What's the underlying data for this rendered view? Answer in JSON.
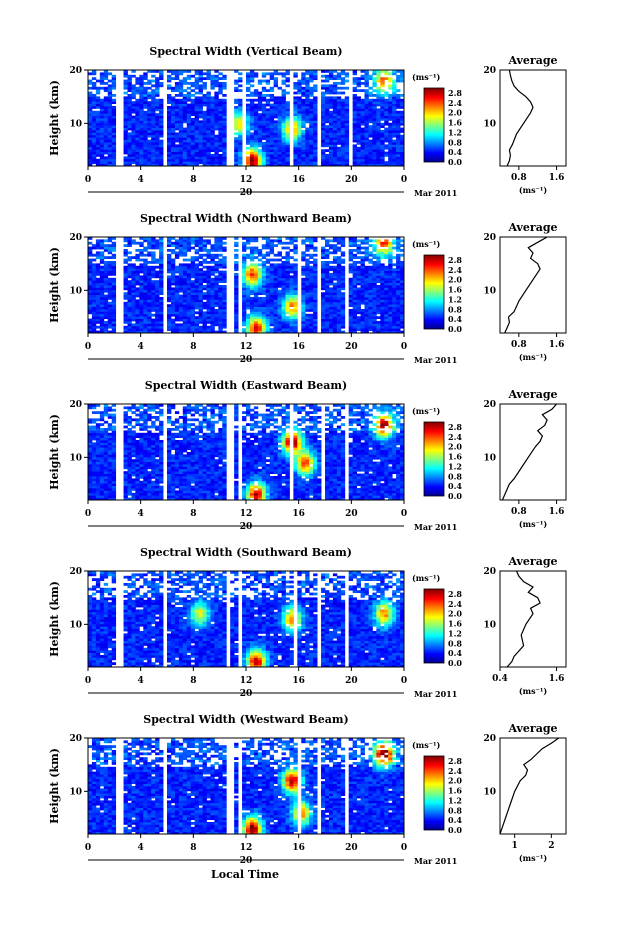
{
  "figure": {
    "date_label": "Mar 2011",
    "day_label": "20",
    "bottom_xlabel": "Local Time",
    "ylabel": "Height (km)",
    "colorbar_unit": "(ms⁻¹)",
    "colorbar_ticks": [
      "0.0",
      "0.4",
      "0.8",
      "1.2",
      "1.6",
      "2.0",
      "2.4",
      "2.8"
    ],
    "x_ticks": [
      "0",
      "4",
      "8",
      "12",
      "16",
      "20",
      "0"
    ],
    "y_ticks": [
      "20",
      "10"
    ],
    "avg_title": "Average",
    "avg_xlabel": "(ms⁻¹)"
  },
  "chart_data": [
    {
      "type": "heatmap",
      "title": "Spectral Width (Vertical Beam)",
      "xlabel": "Local Time",
      "ylabel": "Height (km)",
      "xlim": [
        0,
        24
      ],
      "ylim": [
        2,
        20
      ],
      "clim": [
        0,
        3.0
      ],
      "hotspots": [
        [
          12.5,
          3,
          2.6
        ],
        [
          15.5,
          9,
          1.8
        ],
        [
          11.5,
          10,
          1.4
        ],
        [
          22.5,
          18,
          1.8
        ]
      ],
      "gaps": [
        [
          2.2,
          2.8
        ],
        [
          5.8,
          6.1
        ],
        [
          10.6,
          11.1
        ],
        [
          11.6,
          11.9
        ],
        [
          15.4,
          15.7
        ],
        [
          17.4,
          17.7
        ],
        [
          19.8,
          20.1
        ]
      ],
      "average": {
        "x": [
          0.55,
          0.6,
          0.62,
          0.6,
          0.66,
          0.75,
          0.9,
          1.05,
          1.1,
          1.05,
          0.95,
          0.8,
          0.7,
          0.65,
          0.62,
          0.6
        ],
        "y": [
          2,
          3,
          4,
          5,
          6,
          8,
          10,
          12,
          13,
          14,
          15,
          16,
          17,
          18,
          19,
          20
        ],
        "xlim": [
          0.4,
          1.8
        ],
        "xticks": [
          "0.8",
          "1.6"
        ]
      }
    },
    {
      "type": "heatmap",
      "title": "Spectral Width (Northward Beam)",
      "xlabel": "Local Time",
      "ylabel": "Height (km)",
      "xlim": [
        0,
        24
      ],
      "ylim": [
        2,
        20
      ],
      "clim": [
        0,
        3.0
      ],
      "hotspots": [
        [
          12.8,
          3,
          2.2
        ],
        [
          12.5,
          13,
          2.0
        ],
        [
          15.5,
          7,
          1.8
        ],
        [
          22.5,
          19,
          2.0
        ]
      ],
      "gaps": [
        [
          2.0,
          2.6
        ],
        [
          5.8,
          6.1
        ],
        [
          10.6,
          11.1
        ],
        [
          11.5,
          11.8
        ],
        [
          15.8,
          16.1
        ],
        [
          17.5,
          17.8
        ],
        [
          19.6,
          19.9
        ]
      ],
      "average": {
        "x": [
          0.5,
          0.55,
          0.6,
          0.58,
          0.7,
          0.8,
          0.95,
          1.1,
          1.25,
          1.2,
          1.05,
          1.1,
          1.0,
          1.2,
          1.3,
          1.4
        ],
        "y": [
          2,
          3,
          4,
          5,
          6,
          8,
          10,
          12,
          14,
          15,
          16,
          17,
          18,
          19,
          19.5,
          20
        ],
        "xlim": [
          0.4,
          1.8
        ],
        "xticks": [
          "0.8",
          "1.6"
        ]
      }
    },
    {
      "type": "heatmap",
      "title": "Spectral Width (Eastward Beam)",
      "xlabel": "Local Time",
      "ylabel": "Height (km)",
      "xlim": [
        0,
        24
      ],
      "ylim": [
        2,
        20
      ],
      "clim": [
        0,
        3.0
      ],
      "hotspots": [
        [
          12.8,
          3,
          2.4
        ],
        [
          15.5,
          13,
          2.6
        ],
        [
          16.5,
          9,
          2.0
        ],
        [
          22.5,
          16,
          2.4
        ]
      ],
      "gaps": [
        [
          2.0,
          2.6
        ],
        [
          5.8,
          6.1
        ],
        [
          10.6,
          11.1
        ],
        [
          11.5,
          11.8
        ],
        [
          15.2,
          15.5
        ],
        [
          17.6,
          17.9
        ],
        [
          19.6,
          19.9
        ]
      ],
      "average": {
        "x": [
          0.45,
          0.5,
          0.55,
          0.6,
          0.7,
          0.85,
          1.0,
          1.15,
          1.25,
          1.3,
          1.2,
          1.35,
          1.4,
          1.3,
          1.5,
          1.6
        ],
        "y": [
          2,
          3,
          4,
          5,
          6,
          8,
          10,
          12,
          13,
          14,
          15,
          16,
          17,
          18,
          19,
          20
        ],
        "xlim": [
          0.4,
          1.8
        ],
        "xticks": [
          "0.8",
          "1.6"
        ]
      }
    },
    {
      "type": "heatmap",
      "title": "Spectral Width (Southward Beam)",
      "xlabel": "Local Time",
      "ylabel": "Height (km)",
      "xlim": [
        0,
        24
      ],
      "ylim": [
        2,
        20
      ],
      "clim": [
        0,
        3.0
      ],
      "hotspots": [
        [
          12.8,
          3,
          2.4
        ],
        [
          15.5,
          11,
          1.8
        ],
        [
          22.5,
          12,
          1.8
        ],
        [
          8.5,
          12,
          1.4
        ]
      ],
      "gaps": [
        [
          2.0,
          2.6
        ],
        [
          5.8,
          6.1
        ],
        [
          10.4,
          10.8
        ],
        [
          11.5,
          11.8
        ],
        [
          15.6,
          15.9
        ],
        [
          17.4,
          17.7
        ],
        [
          19.6,
          19.9
        ]
      ],
      "average": {
        "x": [
          0.55,
          0.65,
          0.7,
          0.8,
          0.9,
          0.85,
          0.95,
          1.1,
          1.05,
          1.25,
          1.2,
          1.0,
          1.1,
          0.9,
          0.8,
          0.75
        ],
        "y": [
          2,
          3,
          4,
          5,
          6,
          8,
          10,
          12,
          13,
          14,
          15,
          16,
          17,
          18,
          19,
          20
        ],
        "xlim": [
          0.4,
          1.8
        ],
        "xticks": [
          "0.4",
          "1.6"
        ]
      }
    },
    {
      "type": "heatmap",
      "title": "Spectral Width (Westward Beam)",
      "xlabel": "Local Time",
      "ylabel": "Height (km)",
      "xlim": [
        0,
        24
      ],
      "ylim": [
        2,
        20
      ],
      "clim": [
        0,
        3.0
      ],
      "hotspots": [
        [
          12.5,
          3,
          2.6
        ],
        [
          15.5,
          12,
          2.4
        ],
        [
          16.2,
          6,
          1.8
        ],
        [
          22.5,
          17,
          2.6
        ]
      ],
      "gaps": [
        [
          2.0,
          2.6
        ],
        [
          5.8,
          6.1
        ],
        [
          10.6,
          11.1
        ],
        [
          11.5,
          11.8
        ],
        [
          15.8,
          16.1
        ],
        [
          17.4,
          17.7
        ],
        [
          19.6,
          19.9
        ]
      ],
      "average": {
        "x": [
          0.6,
          0.65,
          0.7,
          0.75,
          0.8,
          0.9,
          1.0,
          1.15,
          1.3,
          1.35,
          1.25,
          1.45,
          1.6,
          1.75,
          2.0,
          2.2
        ],
        "y": [
          2,
          3,
          4,
          5,
          6,
          8,
          10,
          12,
          13,
          14,
          15,
          16,
          17,
          18,
          19,
          20
        ],
        "xlim": [
          0.6,
          2.4
        ],
        "xticks": [
          "1",
          "2"
        ]
      }
    }
  ]
}
